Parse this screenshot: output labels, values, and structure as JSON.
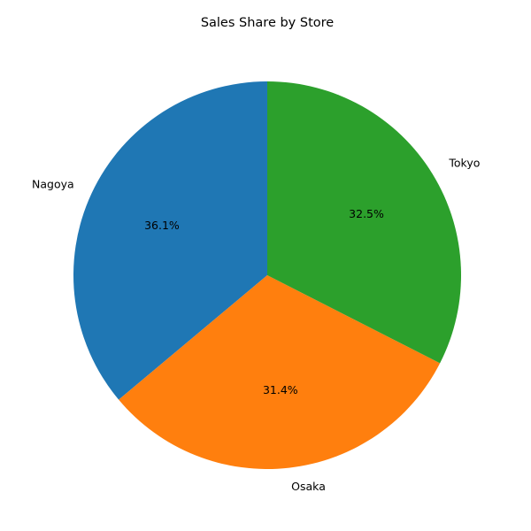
{
  "chart_data": {
    "type": "pie",
    "title": "Sales Share by Store",
    "start_angle_deg": 90,
    "direction": "counterclockwise",
    "slices": [
      {
        "label": "Nagoya",
        "percent": 36.1,
        "percent_label": "36.1%",
        "color": "#1f77b4"
      },
      {
        "label": "Osaka",
        "percent": 31.4,
        "percent_label": "31.4%",
        "color": "#ff7f0e"
      },
      {
        "label": "Tokyo",
        "percent": 32.5,
        "percent_label": "32.5%",
        "color": "#2ca02c"
      }
    ]
  }
}
